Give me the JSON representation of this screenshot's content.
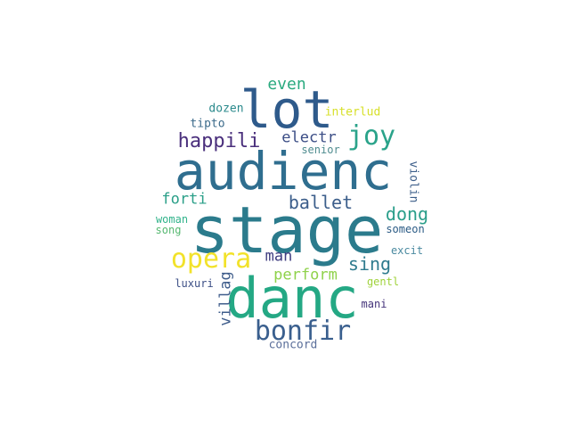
{
  "wordcloud": {
    "words": [
      {
        "text": "stage",
        "color": "#2b7b8c"
      },
      {
        "text": "audienc",
        "color": "#2f6e8f"
      },
      {
        "text": "danc",
        "color": "#24a884"
      },
      {
        "text": "lot",
        "color": "#2e5a8b"
      },
      {
        "text": "bonfir",
        "color": "#3a5f8e"
      },
      {
        "text": "opera",
        "color": "#f2e22a"
      },
      {
        "text": "joy",
        "color": "#2aa38a"
      },
      {
        "text": "happili",
        "color": "#4a2f7c"
      },
      {
        "text": "ballet",
        "color": "#3c5e8b"
      },
      {
        "text": "dong",
        "color": "#2a9e8a"
      },
      {
        "text": "sing",
        "color": "#2f7b8e"
      },
      {
        "text": "perform",
        "color": "#8fd24b"
      },
      {
        "text": "even",
        "color": "#2aaa7f"
      },
      {
        "text": "electr",
        "color": "#3c4e86"
      },
      {
        "text": "forti",
        "color": "#2a9f88"
      },
      {
        "text": "man",
        "color": "#3f3d80"
      },
      {
        "text": "villag",
        "color": "#3f5d8b"
      },
      {
        "text": "interlud",
        "color": "#d7e02a"
      },
      {
        "text": "dozen",
        "color": "#2b8a8c"
      },
      {
        "text": "tipto",
        "color": "#3b6a8a"
      },
      {
        "text": "senior",
        "color": "#4f8c8f"
      },
      {
        "text": "woman",
        "color": "#31b38b"
      },
      {
        "text": "song",
        "color": "#56b871"
      },
      {
        "text": "someon",
        "color": "#2b5b85"
      },
      {
        "text": "excit",
        "color": "#4a8aa0"
      },
      {
        "text": "violin",
        "color": "#3d5f8a"
      },
      {
        "text": "luxuri",
        "color": "#3c4f86"
      },
      {
        "text": "gentl",
        "color": "#9fd23a"
      },
      {
        "text": "mani",
        "color": "#44337a"
      },
      {
        "text": "concord",
        "color": "#5b6f9a"
      }
    ]
  }
}
